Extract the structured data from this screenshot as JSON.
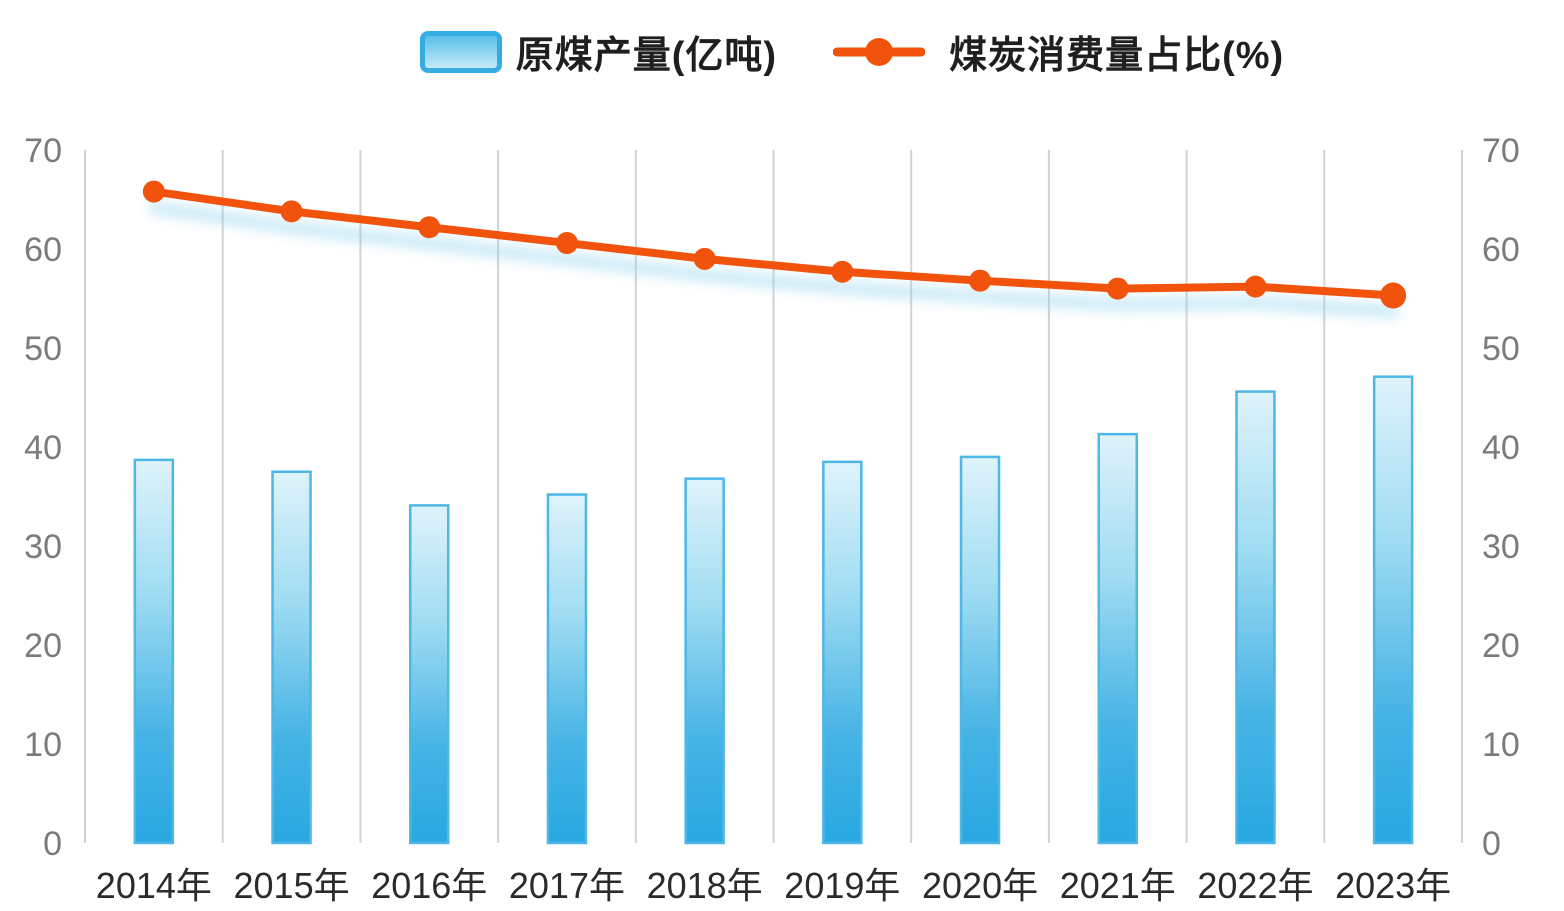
{
  "legend": {
    "items": [
      {
        "label": "原煤产量(亿吨)",
        "marker": "bar-swatch"
      },
      {
        "label": "煤炭消费量占比(%)",
        "marker": "line-dot"
      }
    ]
  },
  "chart_data": {
    "type": "bar+line combo, dual y-axis",
    "categories": [
      "2014年",
      "2015年",
      "2016年",
      "2017年",
      "2018年",
      "2019年",
      "2020年",
      "2021年",
      "2022年",
      "2023年"
    ],
    "series": [
      {
        "name": "原煤产量(亿吨)",
        "type": "bar",
        "axis": "left",
        "values": [
          38.7,
          37.5,
          34.1,
          35.2,
          36.8,
          38.5,
          39.0,
          41.3,
          45.6,
          47.1
        ]
      },
      {
        "name": "煤炭消费量占比(%)",
        "type": "line",
        "axis": "right",
        "values": [
          65.8,
          63.8,
          62.2,
          60.6,
          59.0,
          57.7,
          56.8,
          56.0,
          56.2,
          55.3
        ]
      }
    ],
    "y_axis": {
      "min": 0,
      "max": 70,
      "step": 10,
      "ticks": [
        "0",
        "10",
        "20",
        "30",
        "40",
        "50",
        "60",
        "70"
      ],
      "shown_on": "both-sides"
    },
    "grid": "vertical-only",
    "legend_position": "top-center",
    "title": "",
    "xlabel": "",
    "ylabel": ""
  },
  "colors": {
    "background": "#FFFFFF",
    "bar_fill_top": "#DFF3FB",
    "bar_fill_mid": "#9FDCF2",
    "bar_fill_deep": "#45B3E5",
    "bar_fill_bottom": "#28A8E1",
    "bar_border": "#4FB7E6",
    "line": "#F1530D",
    "line_glow": "#8ED2EF",
    "gridline": "#D2D2D2",
    "y_tick_label": "#7B7B7B",
    "x_tick_label": "#2B2B2B",
    "legend_text": "#1F1F1F",
    "swatch_grad_top": "#58BFE9",
    "swatch_grad_bottom": "#C6EAF7",
    "swatch_border": "#35ADE3"
  }
}
